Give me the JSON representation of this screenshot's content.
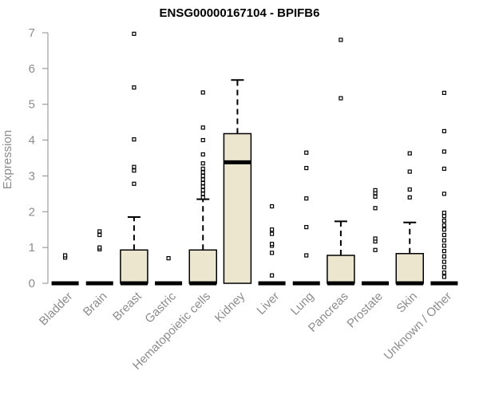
{
  "chart_data": {
    "type": "box",
    "title": "ENSG00000167104 - BPIFB6",
    "xlabel": "",
    "ylabel": "Expression",
    "ylim": [
      0,
      7
    ],
    "yticks": [
      0,
      1,
      2,
      3,
      4,
      5,
      6,
      7
    ],
    "grid": false,
    "legend": "none",
    "colors": {
      "box_fill": "#ede6cf",
      "stroke": "#000000",
      "axis": "#8c8c8c"
    },
    "categories": [
      "Bladder",
      "Brain",
      "Breast",
      "Gastric",
      "Hematopoietic cells",
      "Kidney",
      "Liver",
      "Lung",
      "Pancreas",
      "Prostate",
      "Skin",
      "Unknown / Other"
    ],
    "boxes": [
      {
        "category": "Bladder",
        "q1": 0,
        "median": 0,
        "q3": 0,
        "whisker_low": 0,
        "whisker_high": 0,
        "outliers": [
          0.72,
          0.78
        ]
      },
      {
        "category": "Brain",
        "q1": 0,
        "median": 0,
        "q3": 0,
        "whisker_low": 0,
        "whisker_high": 0,
        "outliers": [
          0.95,
          1.0,
          1.35,
          1.45
        ]
      },
      {
        "category": "Breast",
        "q1": 0,
        "median": 0,
        "q3": 0.93,
        "whisker_low": 0,
        "whisker_high": 1.85,
        "outliers": [
          2.78,
          3.15,
          3.25,
          4.02,
          5.47,
          6.97
        ]
      },
      {
        "category": "Gastric",
        "q1": 0,
        "median": 0,
        "q3": 0,
        "whisker_low": 0,
        "whisker_high": 0,
        "outliers": [
          0.7
        ]
      },
      {
        "category": "Hematopoietic cells",
        "q1": 0,
        "median": 0,
        "q3": 0.93,
        "whisker_low": 0,
        "whisker_high": 2.35,
        "outliers": [
          2.4,
          2.5,
          2.6,
          2.7,
          2.8,
          2.9,
          3.0,
          3.1,
          3.2,
          3.35,
          3.6,
          4.0,
          4.35,
          5.33
        ]
      },
      {
        "category": "Kidney",
        "q1": 0,
        "median": 3.38,
        "q3": 4.18,
        "whisker_low": 0,
        "whisker_high": 5.68,
        "outliers": []
      },
      {
        "category": "Liver",
        "q1": 0,
        "median": 0,
        "q3": 0,
        "whisker_low": 0,
        "whisker_high": 0,
        "outliers": [
          0.22,
          0.85,
          1.05,
          1.1,
          1.38,
          1.5,
          2.15
        ]
      },
      {
        "category": "Lung",
        "q1": 0,
        "median": 0,
        "q3": 0,
        "whisker_low": 0,
        "whisker_high": 0,
        "outliers": [
          0.78,
          1.57,
          2.37,
          3.22,
          3.65
        ]
      },
      {
        "category": "Pancreas",
        "q1": 0,
        "median": 0,
        "q3": 0.78,
        "whisker_low": 0,
        "whisker_high": 1.73,
        "outliers": [
          5.17,
          6.8
        ]
      },
      {
        "category": "Prostate",
        "q1": 0,
        "median": 0,
        "q3": 0,
        "whisker_low": 0,
        "whisker_high": 0,
        "outliers": [
          0.93,
          1.17,
          1.25,
          2.1,
          2.42,
          2.52,
          2.6
        ]
      },
      {
        "category": "Skin",
        "q1": 0,
        "median": 0,
        "q3": 0.83,
        "whisker_low": 0,
        "whisker_high": 1.7,
        "outliers": [
          2.4,
          2.62,
          3.12,
          3.63
        ]
      },
      {
        "category": "Unknown / Other",
        "q1": 0,
        "median": 0,
        "q3": 0,
        "whisker_low": 0,
        "whisker_high": 0,
        "outliers": [
          0.18,
          0.3,
          0.45,
          0.6,
          0.75,
          0.9,
          1.05,
          1.2,
          1.35,
          1.5,
          1.62,
          1.75,
          1.88,
          1.97,
          2.5,
          3.2,
          3.68,
          4.25,
          5.32
        ]
      }
    ]
  }
}
